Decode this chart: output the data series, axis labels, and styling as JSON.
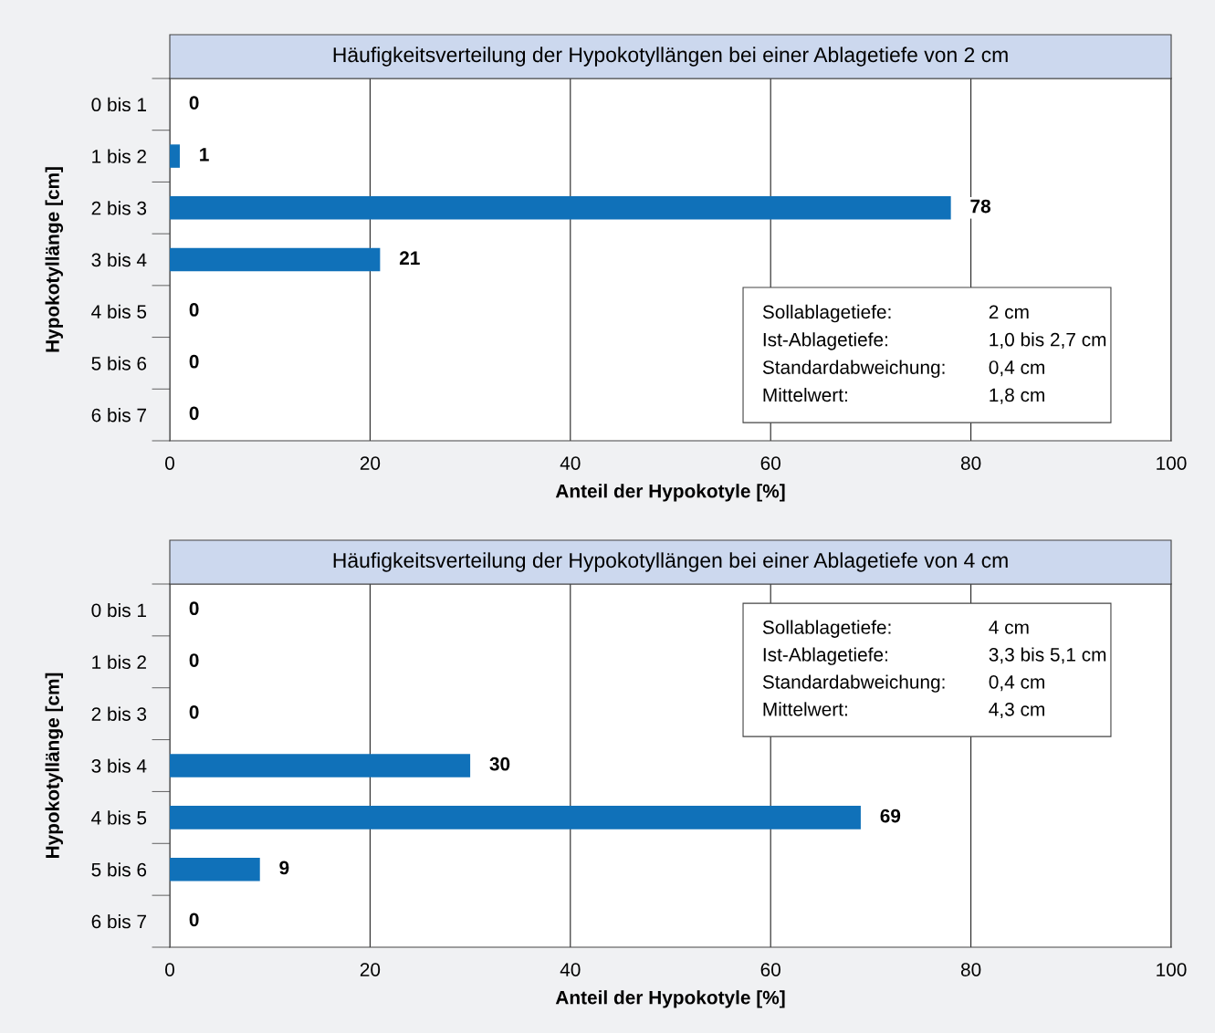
{
  "chart_data": [
    {
      "type": "bar",
      "orientation": "horizontal",
      "title": "Häufigkeitsverteilung der Hypokotyllängen bei einer Ablagetiefe von 2 cm",
      "xlabel": "Anteil der Hypokotyle [%]",
      "ylabel": "Hypokotyllänge [cm]",
      "categories": [
        "0 bis 1",
        "1 bis 2",
        "2 bis 3",
        "3 bis 4",
        "4 bis 5",
        "5 bis 6",
        "6 bis 7"
      ],
      "values": [
        0,
        1,
        78,
        21,
        0,
        0,
        0
      ],
      "color": "#1071b9",
      "data_labels": true,
      "xlim": [
        0,
        100
      ],
      "xticks": [
        0,
        20,
        40,
        60,
        80,
        100
      ],
      "grid": "x",
      "annotations": [
        "Sollablagetiefe:",
        "2 cm",
        "Ist-Ablagetiefe:",
        "1,0 bis 2,7 cm",
        "Standardabweichung:",
        "0,4 cm",
        "Mittelwert:",
        "1,8 cm"
      ]
    },
    {
      "type": "bar",
      "orientation": "horizontal",
      "title": "Häufigkeitsverteilung der Hypokotyllängen bei einer Ablagetiefe von 4 cm",
      "xlabel": "Anteil der Hypokotyle [%]",
      "ylabel": "Hypokotyllänge [cm]",
      "categories": [
        "0 bis 1",
        "1 bis 2",
        "2 bis 3",
        "3 bis 4",
        "4 bis 5",
        "5 bis 6",
        "6 bis 7"
      ],
      "values": [
        0,
        0,
        0,
        30,
        69,
        9,
        0
      ],
      "color": "#1071b9",
      "data_labels": true,
      "xlim": [
        0,
        100
      ],
      "xticks": [
        0,
        20,
        40,
        60,
        80,
        100
      ],
      "grid": "x",
      "annotations": [
        "Sollablagetiefe:",
        "4 cm",
        "Ist-Ablagetiefe:",
        "3,3 bis 5,1 cm",
        "Standardabweichung:",
        "0,4 cm",
        "Mittelwert:",
        "4,3 cm"
      ]
    }
  ]
}
